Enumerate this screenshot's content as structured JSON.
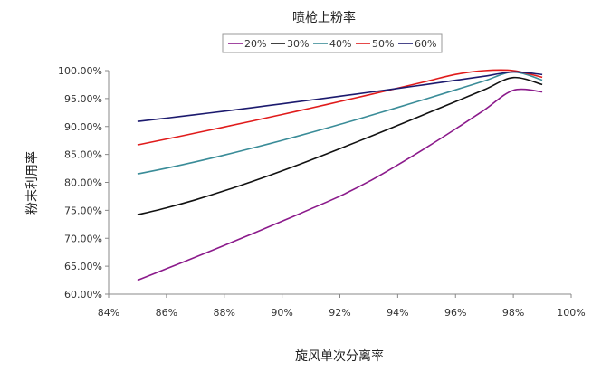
{
  "chart_data": {
    "type": "line",
    "title": "喷枪上粉率",
    "xlabel": "旋风单次分离率",
    "ylabel": "粉末利用率",
    "xlim": [
      0.84,
      1.0
    ],
    "ylim": [
      0.6,
      1.0
    ],
    "x_ticks": [
      "84%",
      "86%",
      "88%",
      "90%",
      "92%",
      "94%",
      "96%",
      "98%",
      "100%"
    ],
    "y_ticks": [
      "60.00%",
      "65.00%",
      "70.00%",
      "75.00%",
      "80.00%",
      "85.00%",
      "90.00%",
      "95.00%",
      "100.00%"
    ],
    "x": [
      0.85,
      0.86,
      0.87,
      0.88,
      0.89,
      0.9,
      0.91,
      0.92,
      0.93,
      0.94,
      0.95,
      0.96,
      0.97,
      0.98,
      0.99
    ],
    "series": [
      {
        "name": "20%",
        "color": "#8b1a8b",
        "values": [
          0.625,
          0.6455,
          0.6662,
          0.6873,
          0.7087,
          0.7305,
          0.7527,
          0.7754,
          0.8015,
          0.8312,
          0.8626,
          0.8955,
          0.9297,
          0.9648,
          0.962
        ]
      },
      {
        "name": "30%",
        "color": "#111111",
        "values": [
          0.742,
          0.7545,
          0.7688,
          0.7849,
          0.8023,
          0.8208,
          0.8402,
          0.8604,
          0.881,
          0.902,
          0.9232,
          0.9445,
          0.966,
          0.9875,
          0.975
        ]
      },
      {
        "name": "40%",
        "color": "#3a8c98",
        "values": [
          0.815,
          0.8255,
          0.8368,
          0.8489,
          0.8617,
          0.8752,
          0.8892,
          0.9038,
          0.9188,
          0.9341,
          0.9497,
          0.9655,
          0.9815,
          0.9975,
          0.983
        ]
      },
      {
        "name": "50%",
        "color": "#e01b1b",
        "values": [
          0.867,
          0.8775,
          0.8882,
          0.8991,
          0.9102,
          0.9215,
          0.933,
          0.9447,
          0.9566,
          0.9686,
          0.9808,
          0.9932,
          1.0,
          1.0,
          0.988
        ]
      },
      {
        "name": "60%",
        "color": "#1c1a6e",
        "values": [
          0.909,
          0.915,
          0.9212,
          0.9275,
          0.934,
          0.9406,
          0.9473,
          0.9541,
          0.9611,
          0.9681,
          0.9753,
          0.9826,
          0.99,
          0.9975,
          0.993
        ]
      }
    ],
    "legend_position": "top-center",
    "grid": false
  }
}
